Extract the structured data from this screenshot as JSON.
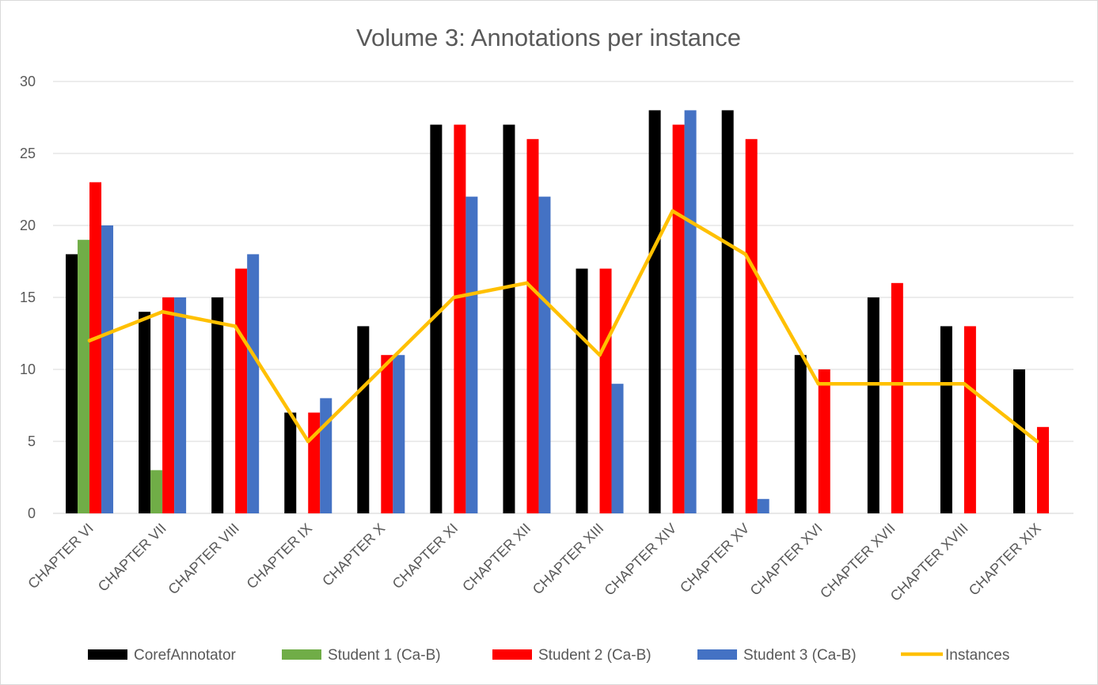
{
  "chart_data": {
    "type": "bar",
    "title": "Volume 3: Annotations per instance",
    "xlabel": "",
    "ylabel": "",
    "ylim": [
      0,
      30
    ],
    "ytick_step": 5,
    "yticks": [
      "0",
      "5",
      "10",
      "15",
      "20",
      "25",
      "30"
    ],
    "grid": true,
    "legend_position": "bottom",
    "categories": [
      "CHAPTER VI",
      "CHAPTER VII",
      "CHAPTER VIII",
      "CHAPTER IX",
      "CHAPTER X",
      "CHAPTER XI",
      "CHAPTER XII",
      "CHAPTER XIII",
      "CHAPTER XIV",
      "CHAPTER XV",
      "CHAPTER XVI",
      "CHAPTER XVII",
      "CHAPTER XVIII",
      "CHAPTER XIX"
    ],
    "series": [
      {
        "name": "CorefAnnotator",
        "kind": "bar",
        "color": "#000000",
        "values": [
          18,
          14,
          15,
          7,
          13,
          27,
          27,
          17,
          28,
          28,
          11,
          15,
          13,
          10
        ]
      },
      {
        "name": "Student 1 (Ca-B)",
        "kind": "bar",
        "color": "#70ad47",
        "values": [
          19,
          3,
          null,
          null,
          null,
          null,
          null,
          null,
          null,
          null,
          null,
          null,
          null,
          null
        ]
      },
      {
        "name": "Student 2 (Ca-B)",
        "kind": "bar",
        "color": "#ff0000",
        "values": [
          23,
          15,
          17,
          7,
          11,
          27,
          26,
          17,
          27,
          26,
          10,
          16,
          13,
          6
        ]
      },
      {
        "name": "Student 3 (Ca-B)",
        "kind": "bar",
        "color": "#4472c4",
        "values": [
          20,
          15,
          18,
          8,
          11,
          22,
          22,
          9,
          28,
          1,
          null,
          null,
          null,
          null
        ]
      },
      {
        "name": "Instances",
        "kind": "line",
        "color": "#ffc000",
        "values": [
          12,
          14,
          13,
          5,
          10,
          15,
          16,
          11,
          21,
          18,
          9,
          9,
          9,
          5
        ]
      }
    ],
    "colors": {
      "grid": "#d9d9d9",
      "text": "#595959",
      "border": "#d9d9d9"
    }
  }
}
